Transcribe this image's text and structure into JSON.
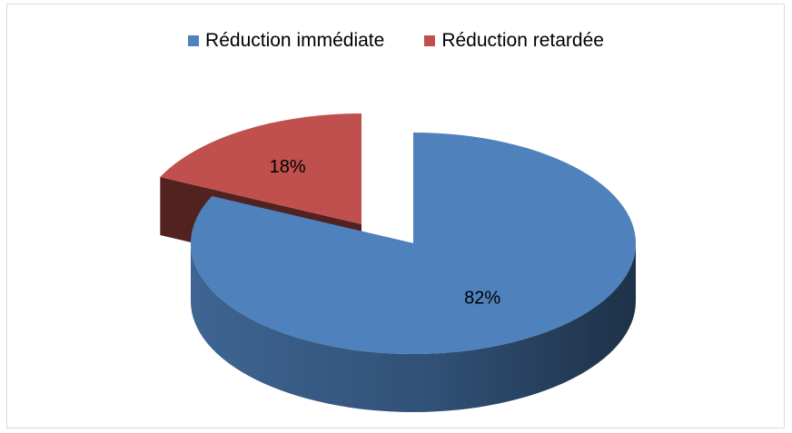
{
  "chart_data": {
    "type": "pie",
    "title": "",
    "categories": [
      "Réduction immédiate",
      "Réduction retardée"
    ],
    "values": [
      82,
      18
    ],
    "data_labels": [
      "82%",
      "18%"
    ],
    "colors": [
      "#4F81BD",
      "#C0504D"
    ],
    "legend_position": "top",
    "style": "3d-exploded"
  }
}
